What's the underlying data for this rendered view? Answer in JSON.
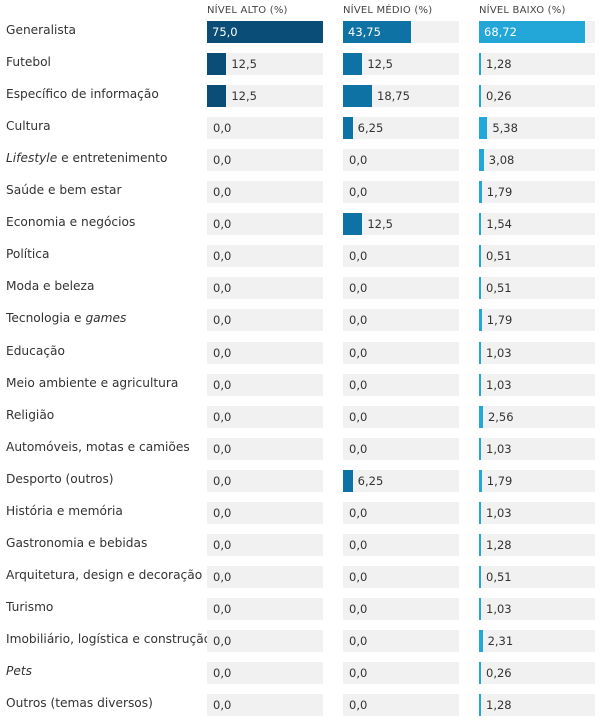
{
  "chart_data": {
    "type": "bar",
    "layout": "small-multiples-horizontal",
    "columns": [
      {
        "header": "NÍVEL ALTO (%)",
        "color": "#0a4e77"
      },
      {
        "header": "NÍVEL MÉDIO (%)",
        "color": "#0f72a4"
      },
      {
        "header": "NÍVEL BAIXO (%)",
        "color": "#22a7d8"
      }
    ],
    "track_color": "#f1f1f1",
    "xlim": [
      0,
      75
    ],
    "categories": [
      {
        "label": "Generalista"
      },
      {
        "label": "Futebol"
      },
      {
        "label": "Específico de informação"
      },
      {
        "label": "Cultura"
      },
      {
        "label": " e entretenimento",
        "italic_prefix": "Lifestyle"
      },
      {
        "label": "Saúde e bem estar"
      },
      {
        "label": "Economia e negócios"
      },
      {
        "label": "Política"
      },
      {
        "label": "Moda e beleza"
      },
      {
        "label": "Tecnologia e ",
        "italic_suffix": "games"
      },
      {
        "label": "Educação"
      },
      {
        "label": "Meio ambiente e agricultura"
      },
      {
        "label": "Religião"
      },
      {
        "label": "Automóveis, motas e camiões"
      },
      {
        "label": "Desporto (outros)"
      },
      {
        "label": "História e memória"
      },
      {
        "label": "Gastronomia e bebidas"
      },
      {
        "label": "Arquitetura, design e decoração"
      },
      {
        "label": "Turismo"
      },
      {
        "label": "Imobiliário, logística e construção"
      },
      {
        "label": "",
        "italic_prefix": "Pets"
      },
      {
        "label": "Outros (temas diversos)"
      }
    ],
    "series": [
      {
        "name": "NÍVEL ALTO (%)",
        "values": [
          75.0,
          12.5,
          12.5,
          0,
          0,
          0,
          0,
          0,
          0,
          0,
          0,
          0,
          0,
          0,
          0,
          0,
          0,
          0,
          0,
          0,
          0,
          0
        ],
        "labels": [
          "75,0",
          "12,5",
          "12,5",
          "0,0",
          "0,0",
          "0,0",
          "0,0",
          "0,0",
          "0,0",
          "0,0",
          "0,0",
          "0,0",
          "0,0",
          "0,0",
          "0,0",
          "0,0",
          "0,0",
          "0,0",
          "0,0",
          "0,0",
          "0,0",
          "0,0"
        ]
      },
      {
        "name": "NÍVEL MÉDIO (%)",
        "values": [
          43.75,
          12.5,
          18.75,
          6.25,
          0,
          0,
          12.5,
          0,
          0,
          0,
          0,
          0,
          0,
          0,
          6.25,
          0,
          0,
          0,
          0,
          0,
          0,
          0
        ],
        "labels": [
          "43,75",
          "12,5",
          "18,75",
          "6,25",
          "0,0",
          "0,0",
          "12,5",
          "0,0",
          "0,0",
          "0,0",
          "0,0",
          "0,0",
          "0,0",
          "0,0",
          "6,25",
          "0,0",
          "0,0",
          "0,0",
          "0,0",
          "0,0",
          "0,0",
          "0,0"
        ]
      },
      {
        "name": "NÍVEL BAIXO (%)",
        "values": [
          68.72,
          1.28,
          0.26,
          5.38,
          3.08,
          1.79,
          1.54,
          0.51,
          0.51,
          1.79,
          1.03,
          1.03,
          2.56,
          1.03,
          1.79,
          1.03,
          1.28,
          0.51,
          1.03,
          2.31,
          0.26,
          1.28
        ],
        "labels": [
          "68,72",
          "1,28",
          "0,26",
          "5,38",
          "3,08",
          "1,79",
          "1,54",
          "0,51",
          "0,51",
          "1,79",
          "1,03",
          "1,03",
          "2,56",
          "1,03",
          "1,79",
          "1,03",
          "1,28",
          "0,51",
          "1,03",
          "2,31",
          "0,26",
          "1,28"
        ]
      }
    ]
  }
}
